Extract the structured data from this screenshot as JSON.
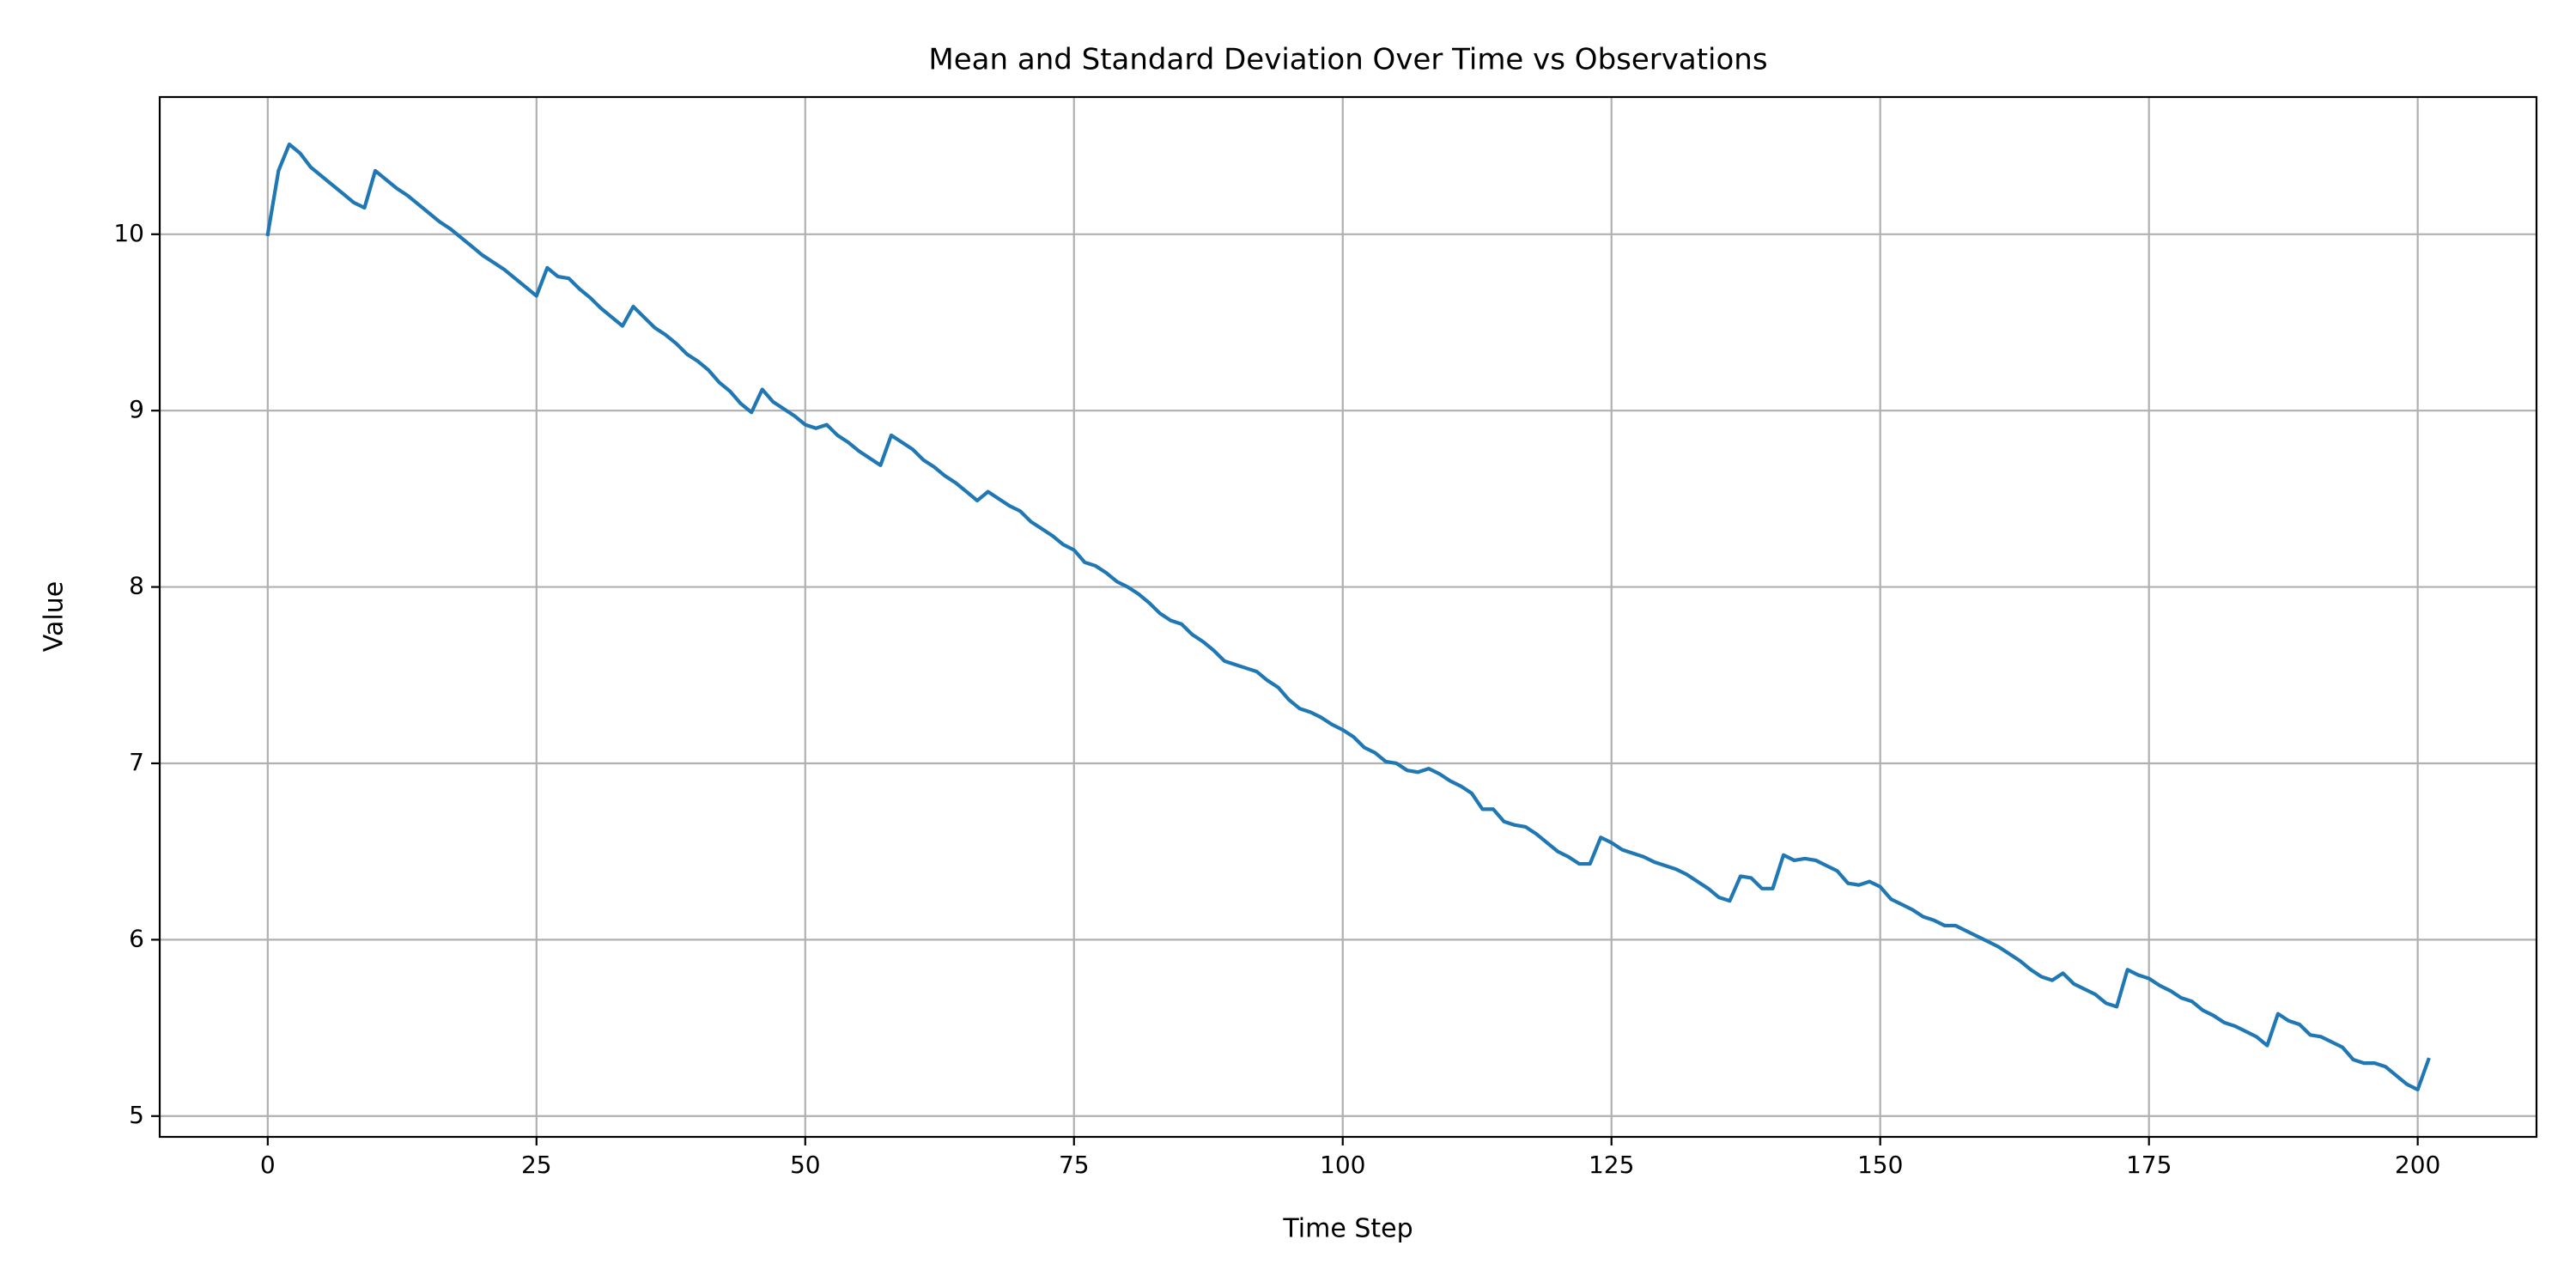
{
  "chart_data": {
    "type": "line",
    "title": "Mean and Standard Deviation Over Time vs Observations",
    "x_label": "Time Step",
    "y_label": "Value",
    "x": [
      0,
      1,
      2,
      3,
      4,
      5,
      6,
      7,
      8,
      9,
      10,
      11,
      12,
      13,
      14,
      15,
      16,
      17,
      18,
      19,
      20,
      21,
      22,
      23,
      24,
      25,
      26,
      27,
      28,
      29,
      30,
      31,
      32,
      33,
      34,
      35,
      36,
      37,
      38,
      39,
      40,
      41,
      42,
      43,
      44,
      45,
      46,
      47,
      48,
      49,
      50,
      51,
      52,
      53,
      54,
      55,
      56,
      57,
      58,
      59,
      60,
      61,
      62,
      63,
      64,
      65,
      66,
      67,
      68,
      69,
      70,
      71,
      72,
      73,
      74,
      75,
      76,
      77,
      78,
      79,
      80,
      81,
      82,
      83,
      84,
      85,
      86,
      87,
      88,
      89,
      90,
      91,
      92,
      93,
      94,
      95,
      96,
      97,
      98,
      99,
      100,
      101,
      102,
      103,
      104,
      105,
      106,
      107,
      108,
      109,
      110,
      111,
      112,
      113,
      114,
      115,
      116,
      117,
      118,
      119,
      120,
      121,
      122,
      123,
      124,
      125,
      126,
      127,
      128,
      129,
      130,
      131,
      132,
      133,
      134,
      135,
      136,
      137,
      138,
      139,
      140,
      141,
      142,
      143,
      144,
      145,
      146,
      147,
      148,
      149,
      150,
      151,
      152,
      153,
      154,
      155,
      156,
      157,
      158,
      159,
      160,
      161,
      162,
      163,
      164,
      165,
      166,
      167,
      168,
      169,
      170,
      171,
      172,
      173,
      174,
      175,
      176,
      177,
      178,
      179,
      180,
      181,
      182,
      183,
      184,
      185,
      186,
      187,
      188,
      189,
      190,
      191,
      192,
      193,
      194,
      195,
      196,
      197,
      198,
      199,
      200,
      201
    ],
    "values": [
      10.0,
      10.36,
      10.51,
      10.46,
      10.38,
      10.33,
      10.28,
      10.23,
      10.18,
      10.15,
      10.36,
      10.31,
      10.26,
      10.22,
      10.17,
      10.12,
      10.07,
      10.03,
      9.98,
      9.93,
      9.88,
      9.84,
      9.8,
      9.75,
      9.7,
      9.65,
      9.81,
      9.76,
      9.75,
      9.69,
      9.64,
      9.58,
      9.53,
      9.48,
      9.59,
      9.53,
      9.47,
      9.43,
      9.38,
      9.32,
      9.28,
      9.23,
      9.16,
      9.11,
      9.04,
      8.99,
      9.12,
      9.05,
      9.01,
      8.97,
      8.92,
      8.9,
      8.92,
      8.86,
      8.82,
      8.77,
      8.73,
      8.69,
      8.86,
      8.82,
      8.78,
      8.72,
      8.68,
      8.63,
      8.59,
      8.54,
      8.49,
      8.54,
      8.5,
      8.46,
      8.43,
      8.37,
      8.33,
      8.29,
      8.24,
      8.21,
      8.14,
      8.12,
      8.08,
      8.03,
      8.0,
      7.96,
      7.91,
      7.85,
      7.81,
      7.79,
      7.73,
      7.69,
      7.64,
      7.58,
      7.56,
      7.54,
      7.52,
      7.47,
      7.43,
      7.36,
      7.31,
      7.29,
      7.26,
      7.22,
      7.19,
      7.15,
      7.09,
      7.06,
      7.01,
      7.0,
      6.96,
      6.95,
      6.97,
      6.94,
      6.9,
      6.87,
      6.83,
      6.74,
      6.74,
      6.67,
      6.65,
      6.64,
      6.6,
      6.55,
      6.5,
      6.47,
      6.43,
      6.43,
      6.58,
      6.55,
      6.51,
      6.49,
      6.47,
      6.44,
      6.42,
      6.4,
      6.37,
      6.33,
      6.29,
      6.24,
      6.22,
      6.36,
      6.35,
      6.29,
      6.29,
      6.48,
      6.45,
      6.46,
      6.45,
      6.42,
      6.39,
      6.32,
      6.31,
      6.33,
      6.3,
      6.23,
      6.2,
      6.17,
      6.13,
      6.11,
      6.08,
      6.08,
      6.05,
      6.02,
      5.99,
      5.96,
      5.92,
      5.88,
      5.83,
      5.79,
      5.77,
      5.81,
      5.75,
      5.72,
      5.69,
      5.64,
      5.62,
      5.83,
      5.8,
      5.78,
      5.74,
      5.71,
      5.67,
      5.65,
      5.6,
      5.57,
      5.53,
      5.51,
      5.48,
      5.45,
      5.4,
      5.58,
      5.54,
      5.52,
      5.46,
      5.45,
      5.42,
      5.39,
      5.32,
      5.3,
      5.3,
      5.28,
      5.23,
      5.18,
      5.15,
      5.32
    ],
    "color": "#1f77b4",
    "xlim": [
      -10.05,
      211.05
    ],
    "xticks": [
      0,
      25,
      50,
      75,
      100,
      125,
      150,
      175,
      200
    ],
    "ylim": [
      4.882,
      10.778
    ],
    "yticks": [
      5,
      6,
      7,
      8,
      9,
      10
    ],
    "grid": true
  }
}
